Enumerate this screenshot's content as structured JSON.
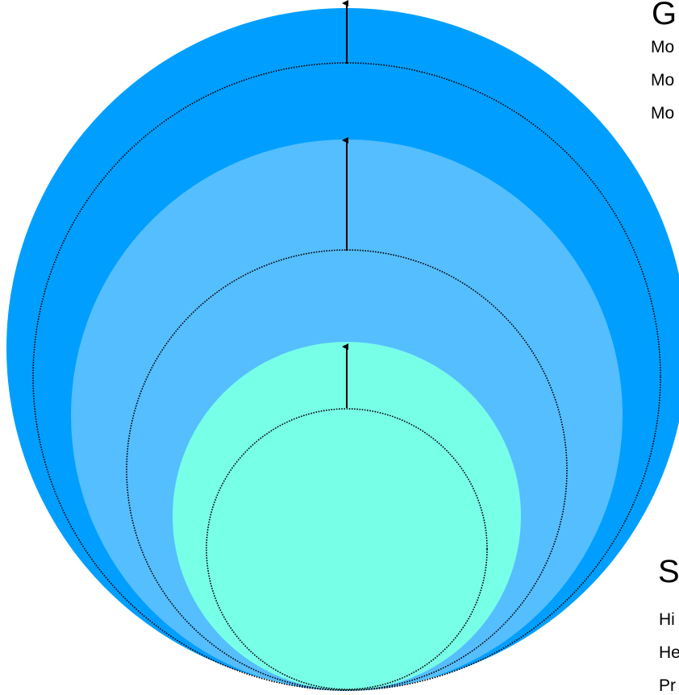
{
  "colors": {
    "outer": "#009FFF",
    "middle": "#55BEFF",
    "inner": "#77FFE8",
    "outline": "#000000"
  },
  "labels": {
    "top_heading": "G",
    "top_lines": [
      "Mo",
      "Mo",
      "Mo"
    ],
    "bottom_heading": "S",
    "bottom_lines": [
      "Hi",
      "He",
      "Pr"
    ]
  }
}
